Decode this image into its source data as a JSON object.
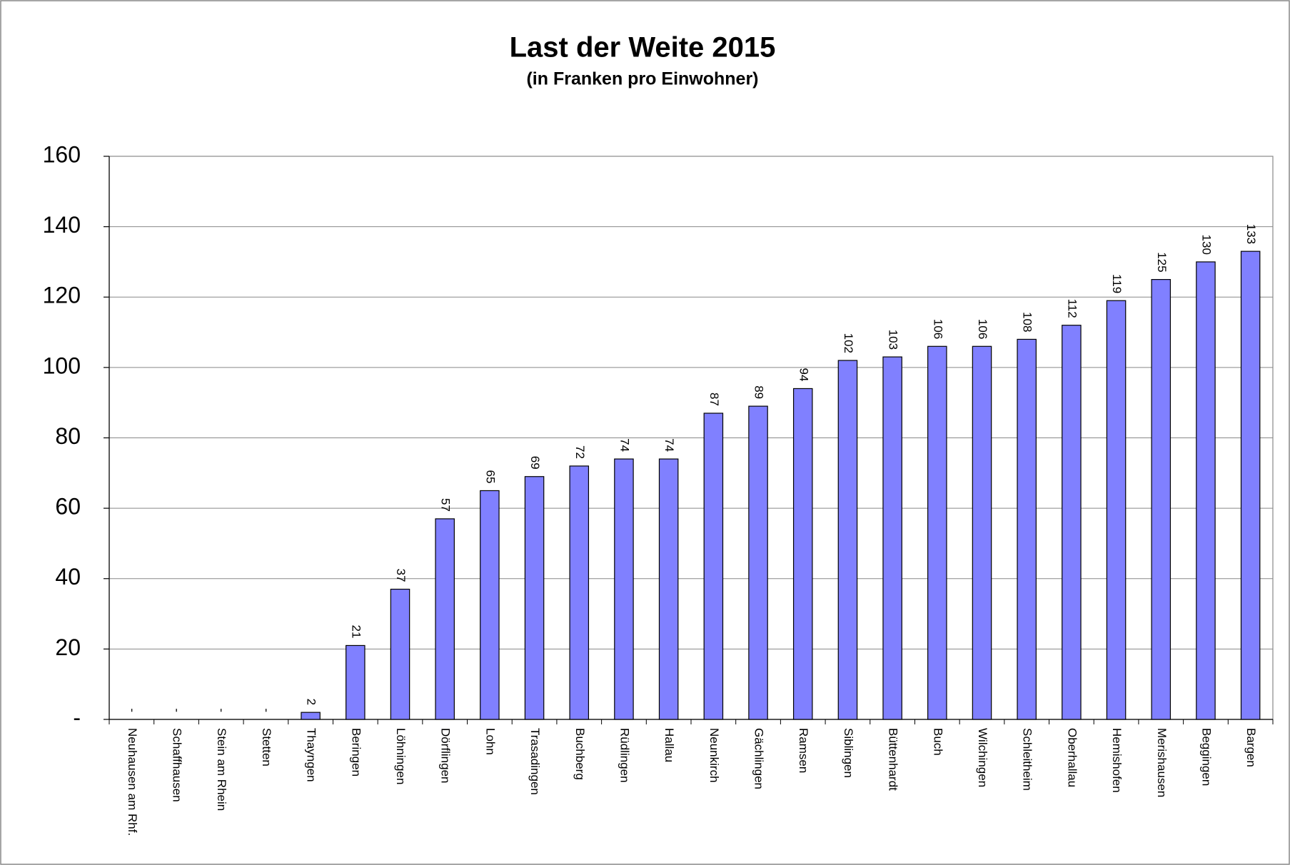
{
  "chart_data": {
    "type": "bar",
    "title": "Last der Weite 2015",
    "subtitle": "(in Franken pro Einwohner)",
    "categories": [
      "Neuhausen am Rhf.",
      "Schaffhausen",
      "Stein am Rhein",
      "Stetten",
      "Thayngen",
      "Beringen",
      "Löhningen",
      "Dörflingen",
      "Lohn",
      "Trasadingen",
      "Buchberg",
      "Rüdlingen",
      "Hallau",
      "Neunkirch",
      "Gächlingen",
      "Ramsen",
      "Siblingen",
      "Büttenhardt",
      "Buch",
      "Wilchingen",
      "Schleitheim",
      "Oberhallau",
      "Hemishofen",
      "Merishausen",
      "Beggingen",
      "Bargen"
    ],
    "values": [
      0,
      0,
      0,
      0,
      2,
      21,
      37,
      57,
      65,
      69,
      72,
      74,
      74,
      87,
      89,
      94,
      102,
      103,
      106,
      106,
      108,
      112,
      119,
      125,
      130,
      133
    ],
    "value_labels": [
      "-",
      "-",
      "-",
      "-",
      "2",
      "21",
      "37",
      "57",
      "65",
      "69",
      "72",
      "74",
      "74",
      "87",
      "89",
      "94",
      "102",
      "103",
      "106",
      "106",
      "108",
      "112",
      "119",
      "125",
      "130",
      "133"
    ],
    "color": "#8080ff",
    "ylim": [
      0,
      160
    ],
    "yticks": [
      {
        "value": 0,
        "label": "-"
      },
      20,
      40,
      60,
      80,
      100,
      120,
      140,
      160
    ],
    "grid": true
  }
}
